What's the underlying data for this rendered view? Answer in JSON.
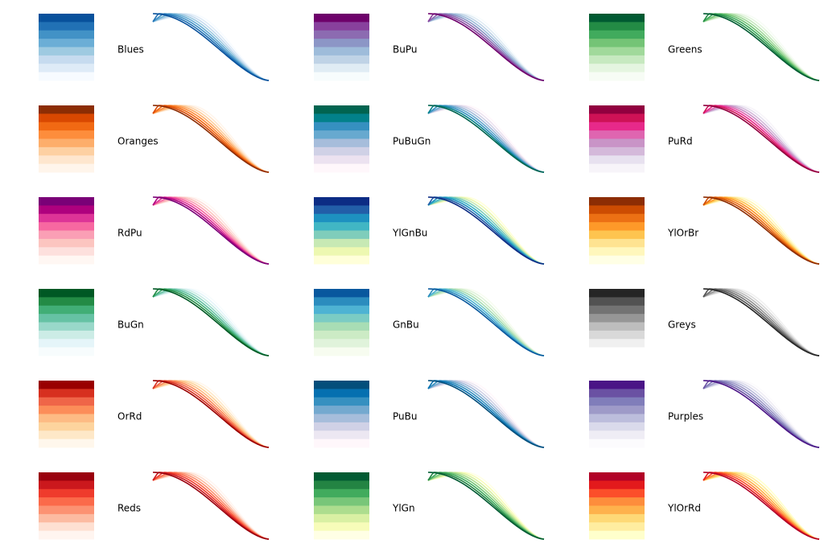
{
  "chart_data": [
    {
      "type": "line",
      "name": "Blues",
      "label": "Blues",
      "colors": [
        "#f7fbff",
        "#deebf7",
        "#c6dbef",
        "#9ecae1",
        "#6baed6",
        "#4292c6",
        "#2171b5",
        "#08519c"
      ]
    },
    {
      "type": "line",
      "name": "BuPu",
      "label": "BuPu",
      "colors": [
        "#f7fcfd",
        "#e0ecf4",
        "#bfd3e6",
        "#9ebcda",
        "#8c96c6",
        "#8c6bb1",
        "#88419d",
        "#6e016b"
      ]
    },
    {
      "type": "line",
      "name": "Greens",
      "label": "Greens",
      "colors": [
        "#f7fcf5",
        "#e5f5e0",
        "#c7e9c0",
        "#a1d99b",
        "#74c476",
        "#41ab5d",
        "#238b45",
        "#005a32"
      ]
    },
    {
      "type": "line",
      "name": "Oranges",
      "label": "Oranges",
      "colors": [
        "#fff5eb",
        "#fee6ce",
        "#fdd0a2",
        "#fdae6b",
        "#fd8d3c",
        "#f16913",
        "#d94801",
        "#8c2d04"
      ]
    },
    {
      "type": "line",
      "name": "PuBuGn",
      "label": "PuBuGn",
      "colors": [
        "#fff7fb",
        "#ece2f0",
        "#d0d1e6",
        "#a6bddb",
        "#67a9cf",
        "#3690c0",
        "#02818a",
        "#016450"
      ]
    },
    {
      "type": "line",
      "name": "PuRd",
      "label": "PuRd",
      "colors": [
        "#f7f4f9",
        "#e7e1ef",
        "#d4b9da",
        "#c994c7",
        "#df65b0",
        "#e7298a",
        "#ce1256",
        "#91003f"
      ]
    },
    {
      "type": "line",
      "name": "RdPu",
      "label": "RdPu",
      "colors": [
        "#fff7f3",
        "#fde0dd",
        "#fcc5c0",
        "#fa9fb5",
        "#f768a1",
        "#dd3497",
        "#ae017e",
        "#7a0177"
      ]
    },
    {
      "type": "line",
      "name": "YlGnBu",
      "label": "YlGnBu",
      "colors": [
        "#ffffd9",
        "#edf8b1",
        "#c7e9b4",
        "#7fcdbb",
        "#41b6c4",
        "#1d91c0",
        "#225ea8",
        "#0c2c84"
      ]
    },
    {
      "type": "line",
      "name": "YlOrBr",
      "label": "YlOrBr",
      "colors": [
        "#ffffe5",
        "#fff7bc",
        "#fee391",
        "#fec44f",
        "#fe9929",
        "#ec7014",
        "#cc4c02",
        "#8c2d04"
      ]
    },
    {
      "type": "line",
      "name": "BuGn",
      "label": "BuGn",
      "colors": [
        "#f7fcfd",
        "#e5f5f9",
        "#ccece6",
        "#99d8c9",
        "#66c2a4",
        "#41ae76",
        "#238b45",
        "#005824"
      ]
    },
    {
      "type": "line",
      "name": "GnBu",
      "label": "GnBu",
      "colors": [
        "#f7fcf0",
        "#e0f3db",
        "#ccebc5",
        "#a8ddb5",
        "#7bccc4",
        "#4eb3d3",
        "#2b8cbe",
        "#08589e"
      ]
    },
    {
      "type": "line",
      "name": "Greys",
      "label": "Greys",
      "colors": [
        "#ffffff",
        "#f0f0f0",
        "#d9d9d9",
        "#bdbdbd",
        "#969696",
        "#737373",
        "#525252",
        "#252525"
      ]
    },
    {
      "type": "line",
      "name": "OrRd",
      "label": "OrRd",
      "colors": [
        "#fff7ec",
        "#fee8c8",
        "#fdd49e",
        "#fdbb84",
        "#fc8d59",
        "#ef6548",
        "#d7301f",
        "#990000"
      ]
    },
    {
      "type": "line",
      "name": "PuBu",
      "label": "PuBu",
      "colors": [
        "#fff7fb",
        "#ece7f2",
        "#d0d1e6",
        "#a6bddb",
        "#74a9cf",
        "#3690c0",
        "#0570b0",
        "#034e7b"
      ]
    },
    {
      "type": "line",
      "name": "Purples",
      "label": "Purples",
      "colors": [
        "#fcfbfd",
        "#efedf5",
        "#dadaeb",
        "#bcbddc",
        "#9e9ac8",
        "#807dba",
        "#6a51a3",
        "#4a1486"
      ]
    },
    {
      "type": "line",
      "name": "Reds",
      "label": "Reds",
      "colors": [
        "#fff5f0",
        "#fee0d2",
        "#fcbba1",
        "#fc9272",
        "#fb6a4a",
        "#ef3b2c",
        "#cb181d",
        "#99000d"
      ]
    },
    {
      "type": "line",
      "name": "YlGn",
      "label": "YlGn",
      "colors": [
        "#ffffe5",
        "#f7fcb9",
        "#d9f0a3",
        "#addd8e",
        "#78c679",
        "#41ab5d",
        "#238443",
        "#005a32"
      ]
    },
    {
      "type": "line",
      "name": "YlOrRd",
      "label": "YlOrRd",
      "colors": [
        "#ffffcc",
        "#ffeda0",
        "#fed976",
        "#feb24c",
        "#fd8d3c",
        "#fc4e2a",
        "#e31a1c",
        "#b10026"
      ]
    }
  ]
}
